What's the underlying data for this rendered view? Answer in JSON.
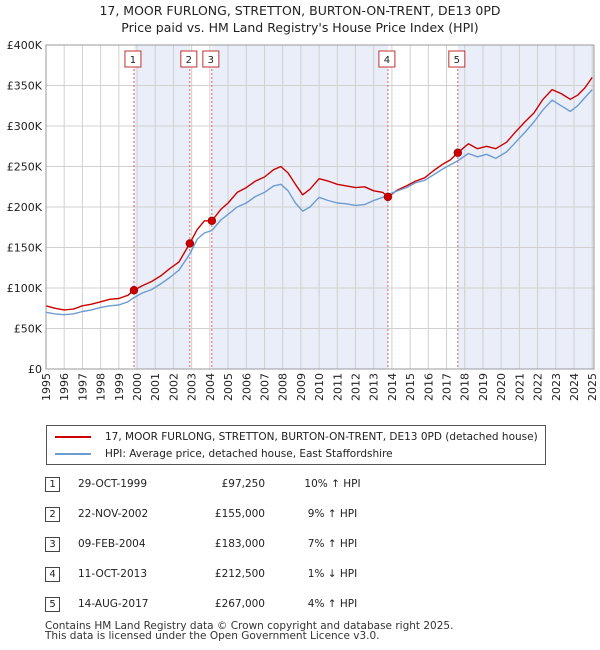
{
  "title": {
    "line1": "17, MOOR FURLONG, STRETTON, BURTON-ON-TRENT, DE13 0PD",
    "line2": "Price paid vs. HM Land Registry's House Price Index (HPI)"
  },
  "colors": {
    "price_line": "#cc0000",
    "hpi_line": "#6e9bd0",
    "shade": "#e9eef8",
    "marker_line": "#e06060",
    "grid": "#d0d0d0"
  },
  "chart_data": {
    "type": "line",
    "ylim": [
      0,
      400000
    ],
    "xlim": [
      1995.0,
      2025.1
    ],
    "y_ticks": [
      {
        "value": 0,
        "label": "£0"
      },
      {
        "value": 50000,
        "label": "£50K"
      },
      {
        "value": 100000,
        "label": "£100K"
      },
      {
        "value": 150000,
        "label": "£150K"
      },
      {
        "value": 200000,
        "label": "£200K"
      },
      {
        "value": 250000,
        "label": "£250K"
      },
      {
        "value": 300000,
        "label": "£300K"
      },
      {
        "value": 350000,
        "label": "£350K"
      },
      {
        "value": 400000,
        "label": "£400K"
      }
    ],
    "x_ticks": [
      "1995",
      "1996",
      "1997",
      "1998",
      "1999",
      "2000",
      "2001",
      "2002",
      "2003",
      "2004",
      "2005",
      "2006",
      "2007",
      "2008",
      "2009",
      "2010",
      "2011",
      "2012",
      "2013",
      "2014",
      "2015",
      "2016",
      "2017",
      "2018",
      "2019",
      "2020",
      "2021",
      "2022",
      "2023",
      "2024",
      "2025"
    ],
    "grid": true,
    "series": [
      {
        "name": "17, MOOR FURLONG, STRETTON, BURTON-ON-TRENT, DE13 0PD (detached house)",
        "color": "#cc0000",
        "points": [
          [
            1995.0,
            78000
          ],
          [
            1995.5,
            75000
          ],
          [
            1996.0,
            73000
          ],
          [
            1996.5,
            74000
          ],
          [
            1997.0,
            78000
          ],
          [
            1997.5,
            80000
          ],
          [
            1998.0,
            83000
          ],
          [
            1998.5,
            86000
          ],
          [
            1999.0,
            87000
          ],
          [
            1999.5,
            91000
          ],
          [
            1999.83,
            97250
          ],
          [
            2000.3,
            103000
          ],
          [
            2000.8,
            108000
          ],
          [
            2001.3,
            115000
          ],
          [
            2001.8,
            124000
          ],
          [
            2002.3,
            132000
          ],
          [
            2002.9,
            155000
          ],
          [
            2003.3,
            172000
          ],
          [
            2003.7,
            183000
          ],
          [
            2004.11,
            183000
          ],
          [
            2004.6,
            197000
          ],
          [
            2005.0,
            205000
          ],
          [
            2005.5,
            218000
          ],
          [
            2006.0,
            224000
          ],
          [
            2006.5,
            232000
          ],
          [
            2007.0,
            237000
          ],
          [
            2007.5,
            246000
          ],
          [
            2007.9,
            250000
          ],
          [
            2008.3,
            242000
          ],
          [
            2008.7,
            228000
          ],
          [
            2009.1,
            215000
          ],
          [
            2009.5,
            222000
          ],
          [
            2010.0,
            235000
          ],
          [
            2010.5,
            232000
          ],
          [
            2011.0,
            228000
          ],
          [
            2011.5,
            226000
          ],
          [
            2012.0,
            224000
          ],
          [
            2012.5,
            225000
          ],
          [
            2013.0,
            220000
          ],
          [
            2013.5,
            218000
          ],
          [
            2013.78,
            212500
          ],
          [
            2014.3,
            221000
          ],
          [
            2014.8,
            226000
          ],
          [
            2015.3,
            232000
          ],
          [
            2015.8,
            236000
          ],
          [
            2016.3,
            245000
          ],
          [
            2016.8,
            253000
          ],
          [
            2017.2,
            258000
          ],
          [
            2017.62,
            267000
          ],
          [
            2018.2,
            278000
          ],
          [
            2018.7,
            272000
          ],
          [
            2019.2,
            275000
          ],
          [
            2019.7,
            272000
          ],
          [
            2020.3,
            280000
          ],
          [
            2020.8,
            293000
          ],
          [
            2021.3,
            305000
          ],
          [
            2021.8,
            316000
          ],
          [
            2022.3,
            333000
          ],
          [
            2022.8,
            345000
          ],
          [
            2023.3,
            340000
          ],
          [
            2023.8,
            333000
          ],
          [
            2024.2,
            338000
          ],
          [
            2024.6,
            347000
          ],
          [
            2025.0,
            360000
          ]
        ]
      },
      {
        "name": "HPI: Average price, detached house, East Staffordshire",
        "color": "#6e9bd0",
        "points": [
          [
            1995.0,
            70000
          ],
          [
            1995.5,
            68000
          ],
          [
            1996.0,
            67000
          ],
          [
            1996.5,
            68000
          ],
          [
            1997.0,
            71000
          ],
          [
            1997.5,
            73000
          ],
          [
            1998.0,
            76000
          ],
          [
            1998.5,
            78000
          ],
          [
            1999.0,
            79000
          ],
          [
            1999.5,
            83000
          ],
          [
            1999.83,
            88000
          ],
          [
            2000.3,
            94000
          ],
          [
            2000.8,
            98000
          ],
          [
            2001.3,
            105000
          ],
          [
            2001.8,
            113000
          ],
          [
            2002.3,
            122000
          ],
          [
            2002.9,
            142000
          ],
          [
            2003.3,
            160000
          ],
          [
            2003.7,
            168000
          ],
          [
            2004.11,
            171000
          ],
          [
            2004.6,
            184000
          ],
          [
            2005.0,
            191000
          ],
          [
            2005.5,
            200000
          ],
          [
            2006.0,
            205000
          ],
          [
            2006.5,
            213000
          ],
          [
            2007.0,
            218000
          ],
          [
            2007.5,
            226000
          ],
          [
            2007.9,
            228000
          ],
          [
            2008.3,
            220000
          ],
          [
            2008.7,
            205000
          ],
          [
            2009.1,
            195000
          ],
          [
            2009.5,
            200000
          ],
          [
            2010.0,
            212000
          ],
          [
            2010.5,
            208000
          ],
          [
            2011.0,
            205000
          ],
          [
            2011.5,
            204000
          ],
          [
            2012.0,
            202000
          ],
          [
            2012.5,
            203000
          ],
          [
            2013.0,
            208000
          ],
          [
            2013.5,
            212000
          ],
          [
            2013.78,
            215000
          ],
          [
            2014.3,
            220000
          ],
          [
            2014.8,
            224000
          ],
          [
            2015.3,
            230000
          ],
          [
            2015.8,
            233000
          ],
          [
            2016.3,
            240000
          ],
          [
            2016.8,
            247000
          ],
          [
            2017.2,
            252000
          ],
          [
            2017.62,
            257000
          ],
          [
            2018.2,
            266000
          ],
          [
            2018.7,
            262000
          ],
          [
            2019.2,
            265000
          ],
          [
            2019.7,
            260000
          ],
          [
            2020.3,
            268000
          ],
          [
            2020.8,
            280000
          ],
          [
            2021.3,
            292000
          ],
          [
            2021.8,
            305000
          ],
          [
            2022.3,
            320000
          ],
          [
            2022.8,
            332000
          ],
          [
            2023.3,
            325000
          ],
          [
            2023.8,
            318000
          ],
          [
            2024.2,
            325000
          ],
          [
            2024.6,
            335000
          ],
          [
            2025.0,
            345000
          ]
        ]
      }
    ],
    "sales": [
      {
        "id": "1",
        "x": 1999.83,
        "value": 97250
      },
      {
        "id": "2",
        "x": 2002.9,
        "value": 155000
      },
      {
        "id": "3",
        "x": 2004.11,
        "value": 183000
      },
      {
        "id": "4",
        "x": 2013.78,
        "value": 212500
      },
      {
        "id": "5",
        "x": 2017.62,
        "value": 267000
      }
    ]
  },
  "legend": {
    "price_label": "17, MOOR FURLONG, STRETTON, BURTON-ON-TRENT, DE13 0PD (detached house)",
    "hpi_label": "HPI: Average price, detached house, East Staffordshire"
  },
  "transactions": [
    {
      "num": "1",
      "date": "29-OCT-1999",
      "price": "£97,250",
      "hpi": "10% ↑ HPI"
    },
    {
      "num": "2",
      "date": "22-NOV-2002",
      "price": "£155,000",
      "hpi": "9% ↑ HPI"
    },
    {
      "num": "3",
      "date": "09-FEB-2004",
      "price": "£183,000",
      "hpi": "7% ↑ HPI"
    },
    {
      "num": "4",
      "date": "11-OCT-2013",
      "price": "£212,500",
      "hpi": "1% ↓ HPI"
    },
    {
      "num": "5",
      "date": "14-AUG-2017",
      "price": "£267,000",
      "hpi": "4% ↑ HPI"
    }
  ],
  "footer": {
    "line1": "Contains HM Land Registry data © Crown copyright and database right 2025.",
    "line2": "This data is licensed under the Open Government Licence v3.0."
  }
}
